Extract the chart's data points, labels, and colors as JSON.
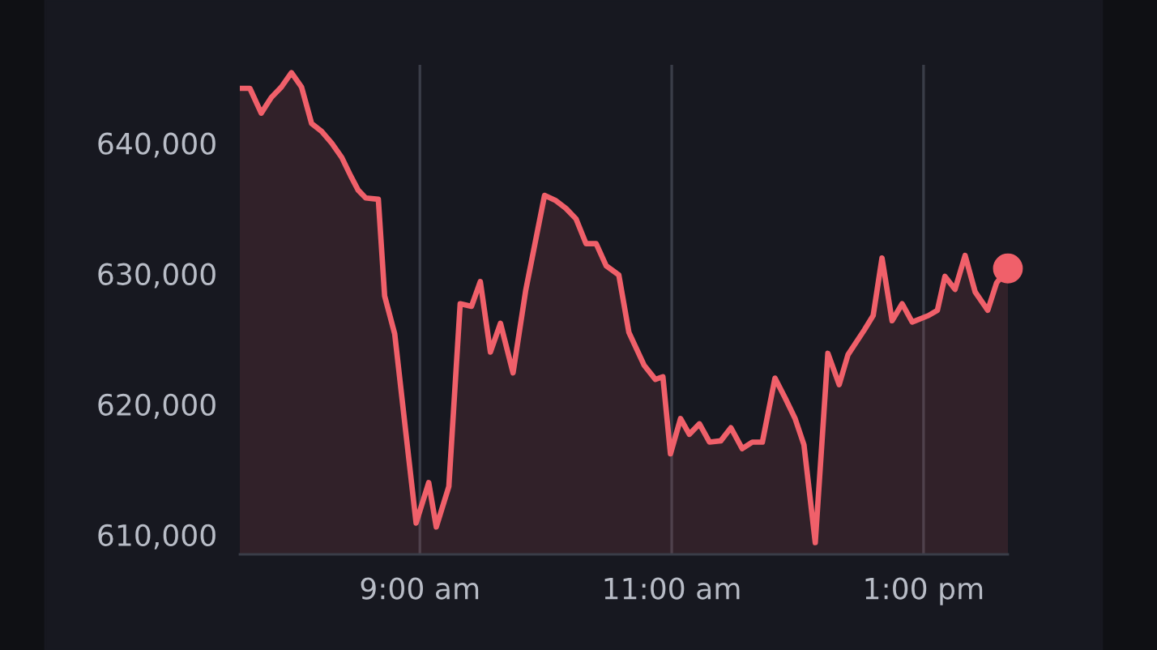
{
  "chart_data": {
    "type": "area",
    "xlim": [
      7.57,
      13.67
    ],
    "ylim": [
      608500,
      646000
    ],
    "xticks": [
      {
        "value": 9,
        "label": "9:00 am"
      },
      {
        "value": 11,
        "label": "11:00 am"
      },
      {
        "value": 13,
        "label": "1:00 pm"
      }
    ],
    "yticks": [
      {
        "value": 610000,
        "label": "610,000"
      },
      {
        "value": 620000,
        "label": "620,000"
      },
      {
        "value": 630000,
        "label": "630,000"
      },
      {
        "value": 640000,
        "label": "640,000"
      }
    ],
    "grid": "x",
    "series": [
      {
        "color": "#f0606a",
        "x": [
          7.57,
          7.65,
          7.74,
          7.82,
          7.9,
          7.98,
          8.06,
          8.14,
          8.22,
          8.3,
          8.38,
          8.45,
          8.51,
          8.57,
          8.67,
          8.72,
          8.8,
          8.89,
          8.97,
          9.07,
          9.13,
          9.23,
          9.32,
          9.41,
          9.48,
          9.56,
          9.64,
          9.74,
          9.84,
          9.99,
          10.08,
          10.16,
          10.24,
          10.32,
          10.4,
          10.48,
          10.58,
          10.66,
          10.78,
          10.87,
          10.93,
          10.99,
          11.07,
          11.14,
          11.22,
          11.3,
          11.39,
          11.47,
          11.56,
          11.64,
          11.72,
          11.82,
          11.9,
          11.98,
          12.05,
          12.14,
          12.24,
          12.33,
          12.4,
          12.53,
          12.6,
          12.67,
          12.75,
          12.83,
          12.91,
          13.04,
          13.11,
          13.17,
          13.25,
          13.33,
          13.41,
          13.51,
          13.58,
          13.67
        ],
        "values": [
          644200,
          644200,
          642300,
          643500,
          644300,
          645400,
          644300,
          641500,
          640900,
          640000,
          638900,
          637500,
          636400,
          635800,
          635700,
          628300,
          625400,
          617700,
          610900,
          614000,
          610600,
          613700,
          627700,
          627500,
          629400,
          624000,
          626200,
          622400,
          628700,
          636000,
          635600,
          635000,
          634200,
          632300,
          632300,
          630600,
          629900,
          625500,
          623000,
          621900,
          622100,
          616200,
          618900,
          617700,
          618500,
          617100,
          617200,
          618200,
          616600,
          617100,
          617100,
          622000,
          620500,
          618900,
          616900,
          609400,
          623900,
          621500,
          623800,
          625700,
          626800,
          631200,
          626400,
          627700,
          626300,
          626800,
          627200,
          629800,
          628800,
          631400,
          628600,
          627200,
          629300,
          630400
        ]
      },
      {
        "type": "scatter",
        "color": "#f0606a",
        "marker": "circle",
        "x": [
          13.67
        ],
        "values": [
          630400
        ]
      }
    ]
  }
}
